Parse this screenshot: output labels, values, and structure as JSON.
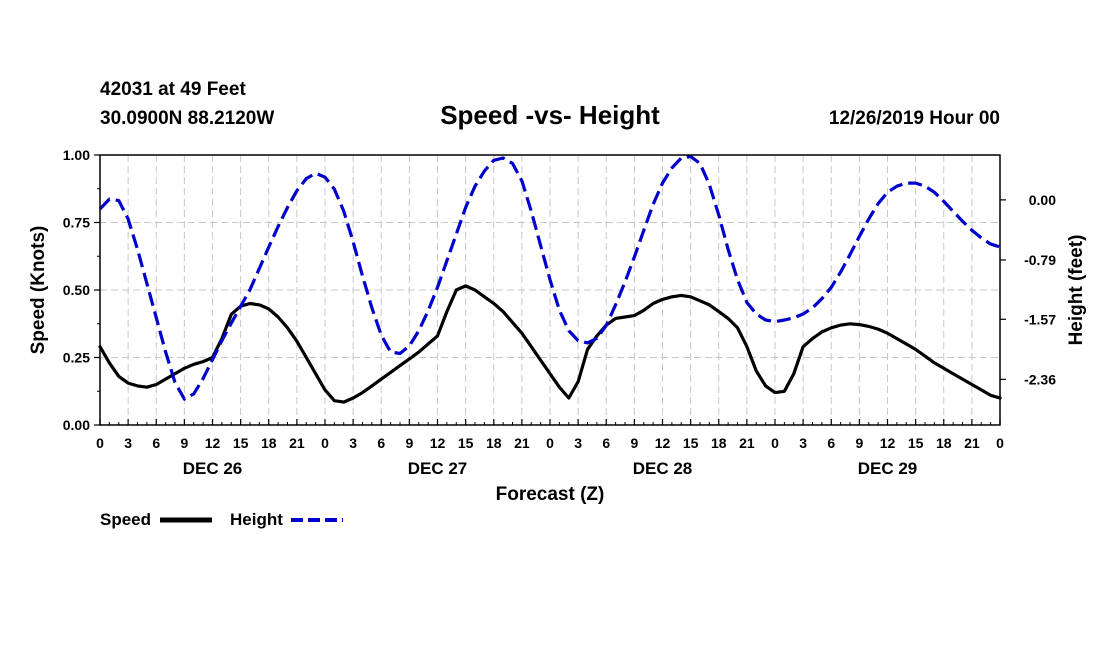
{
  "header": {
    "station_line": "42031 at 49 Feet",
    "coords_line": "30.0900N 88.2120W",
    "title": "Speed -vs- Height",
    "datetime": "12/26/2019 Hour 00"
  },
  "chart_data": {
    "type": "line",
    "title": "Speed -vs- Height",
    "xlabel": "Forecast (Z)",
    "ylabel_left": "Speed (Knots)",
    "ylabel_right": "Height (feet)",
    "x_range_hours": [
      0,
      96
    ],
    "x_ticks_hours": [
      0,
      3,
      6,
      9,
      12,
      15,
      18,
      21,
      24,
      27,
      30,
      33,
      36,
      39,
      42,
      45,
      48,
      51,
      54,
      57,
      60,
      63,
      66,
      69,
      72,
      75,
      78,
      81,
      84,
      87,
      90,
      93,
      96
    ],
    "x_tick_labels": [
      "0",
      "3",
      "6",
      "9",
      "12",
      "15",
      "18",
      "21",
      "0",
      "3",
      "6",
      "9",
      "12",
      "15",
      "18",
      "21",
      "0",
      "3",
      "6",
      "9",
      "12",
      "15",
      "18",
      "21",
      "0",
      "3",
      "6",
      "9",
      "12",
      "15",
      "18",
      "21",
      "0"
    ],
    "day_labels": [
      {
        "label": "DEC 26",
        "hour": 12
      },
      {
        "label": "DEC 27",
        "hour": 36
      },
      {
        "label": "DEC 28",
        "hour": 60
      },
      {
        "label": "DEC 29",
        "hour": 84
      }
    ],
    "left_axis": {
      "range": [
        0.0,
        1.0
      ],
      "ticks": [
        0.0,
        0.25,
        0.5,
        0.75,
        1.0
      ],
      "tick_labels": [
        "0.00",
        "0.25",
        "0.50",
        "0.75",
        "1.00"
      ]
    },
    "right_axis": {
      "range": [
        -2.96,
        0.59
      ],
      "ticks": [
        0.0,
        -0.79,
        -1.57,
        -2.36
      ],
      "tick_labels": [
        "0.00",
        "-0.79",
        "-1.57",
        "-2.36"
      ]
    },
    "grid": true,
    "legend_position": "bottom-left",
    "series": [
      {
        "name": "Speed",
        "axis": "left",
        "color": "#000000",
        "dash": "solid",
        "x": [
          0,
          1,
          2,
          3,
          4,
          5,
          6,
          7,
          8,
          9,
          10,
          11,
          12,
          13,
          14,
          15,
          16,
          17,
          18,
          19,
          20,
          21,
          22,
          23,
          24,
          25,
          26,
          27,
          28,
          29,
          30,
          31,
          32,
          33,
          34,
          35,
          36,
          37,
          38,
          39,
          40,
          41,
          42,
          43,
          44,
          45,
          46,
          47,
          48,
          49,
          50,
          51,
          52,
          53,
          54,
          55,
          56,
          57,
          58,
          59,
          60,
          61,
          62,
          63,
          64,
          65,
          66,
          67,
          68,
          69,
          70,
          71,
          72,
          73,
          74,
          75,
          76,
          77,
          78,
          79,
          80,
          81,
          82,
          83,
          84,
          85,
          86,
          87,
          88,
          89,
          90,
          91,
          92,
          93,
          94,
          95,
          96
        ],
        "values": [
          0.29,
          0.23,
          0.18,
          0.155,
          0.145,
          0.14,
          0.15,
          0.17,
          0.19,
          0.21,
          0.225,
          0.235,
          0.25,
          0.32,
          0.41,
          0.44,
          0.45,
          0.445,
          0.43,
          0.4,
          0.36,
          0.31,
          0.25,
          0.19,
          0.13,
          0.09,
          0.085,
          0.1,
          0.12,
          0.145,
          0.17,
          0.195,
          0.22,
          0.245,
          0.27,
          0.3,
          0.33,
          0.42,
          0.5,
          0.515,
          0.5,
          0.475,
          0.45,
          0.42,
          0.38,
          0.34,
          0.29,
          0.24,
          0.19,
          0.14,
          0.1,
          0.16,
          0.28,
          0.33,
          0.37,
          0.395,
          0.4,
          0.405,
          0.425,
          0.45,
          0.465,
          0.475,
          0.48,
          0.475,
          0.46,
          0.445,
          0.42,
          0.395,
          0.36,
          0.29,
          0.2,
          0.145,
          0.12,
          0.125,
          0.19,
          0.29,
          0.32,
          0.345,
          0.36,
          0.37,
          0.375,
          0.372,
          0.365,
          0.355,
          0.34,
          0.32,
          0.3,
          0.28,
          0.255,
          0.23,
          0.21,
          0.19,
          0.17,
          0.15,
          0.13,
          0.11,
          0.1
        ]
      },
      {
        "name": "Height",
        "axis": "right",
        "color": "#0000cc",
        "dash": "dashed",
        "x": [
          0,
          1,
          2,
          3,
          4,
          5,
          6,
          7,
          8,
          9,
          10,
          11,
          12,
          13,
          14,
          15,
          16,
          17,
          18,
          19,
          20,
          21,
          22,
          23,
          24,
          25,
          26,
          27,
          28,
          29,
          30,
          31,
          32,
          33,
          34,
          35,
          36,
          37,
          38,
          39,
          40,
          41,
          42,
          43,
          44,
          45,
          46,
          47,
          48,
          49,
          50,
          51,
          52,
          53,
          54,
          55,
          56,
          57,
          58,
          59,
          60,
          61,
          62,
          63,
          64,
          65,
          66,
          67,
          68,
          69,
          70,
          71,
          72,
          73,
          74,
          75,
          76,
          77,
          78,
          79,
          80,
          81,
          82,
          83,
          84,
          85,
          86,
          87,
          88,
          89,
          90,
          91,
          92,
          93,
          94,
          95,
          96
        ],
        "values": [
          -0.12,
          0.01,
          -0.01,
          -0.25,
          -0.65,
          -1.1,
          -1.55,
          -2.0,
          -2.4,
          -2.62,
          -2.55,
          -2.35,
          -2.1,
          -1.85,
          -1.62,
          -1.4,
          -1.18,
          -0.9,
          -0.62,
          -0.35,
          -0.1,
          0.12,
          0.28,
          0.35,
          0.3,
          0.14,
          -0.15,
          -0.55,
          -1.0,
          -1.42,
          -1.78,
          -2.0,
          -2.02,
          -1.92,
          -1.72,
          -1.46,
          -1.15,
          -0.8,
          -0.45,
          -0.1,
          0.18,
          0.38,
          0.52,
          0.55,
          0.48,
          0.25,
          -0.15,
          -0.6,
          -1.05,
          -1.45,
          -1.72,
          -1.85,
          -1.88,
          -1.82,
          -1.65,
          -1.38,
          -1.08,
          -0.75,
          -0.4,
          -0.06,
          0.22,
          0.42,
          0.55,
          0.57,
          0.48,
          0.2,
          -0.2,
          -0.65,
          -1.05,
          -1.35,
          -1.5,
          -1.58,
          -1.6,
          -1.58,
          -1.55,
          -1.5,
          -1.42,
          -1.3,
          -1.15,
          -0.95,
          -0.72,
          -0.48,
          -0.25,
          -0.05,
          0.1,
          0.18,
          0.22,
          0.22,
          0.18,
          0.1,
          -0.02,
          -0.15,
          -0.28,
          -0.4,
          -0.5,
          -0.58,
          -0.62
        ]
      }
    ]
  }
}
